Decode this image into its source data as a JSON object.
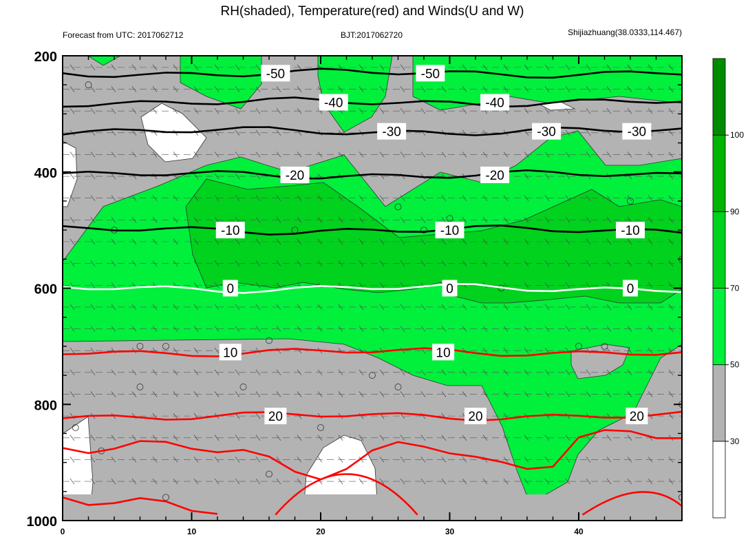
{
  "chart_data": {
    "type": "contour",
    "title": "RH(shaded), Temperature(red) and Winds(U and W)",
    "subtitle_left": "Forecast from UTC: 2017062712",
    "subtitle_center": "BJT:2017062720",
    "subtitle_right": "Shijiazhuang(38.0333,114.467)",
    "x": {
      "range": [
        0,
        48
      ],
      "ticks": [
        0,
        10,
        20,
        30,
        40
      ],
      "tick_labels": [
        "0",
        "10",
        "20",
        "30",
        "40"
      ]
    },
    "y": {
      "range": [
        200,
        1000
      ],
      "reversed": true,
      "ticks": [
        200,
        400,
        600,
        800,
        1000
      ],
      "tick_labels": [
        "200",
        "400",
        "600",
        "800",
        "1000"
      ]
    },
    "colorbar": {
      "levels": [
        30,
        50,
        70,
        90,
        100
      ],
      "labels": [
        "30",
        "50",
        "70",
        "90",
        "100"
      ],
      "colors": [
        "#ffffff",
        "#b3b3b3",
        "#00f03c",
        "#00d21e",
        "#00b400",
        "#008c00"
      ]
    },
    "temperature_contours": [
      {
        "value": -50,
        "label": "-50",
        "level": 230,
        "color": "#000000",
        "label_x": [
          16.5,
          28.5
        ]
      },
      {
        "value": -40,
        "label": "-40",
        "level": 280,
        "color": "#000000",
        "label_x": [
          21,
          33.5
        ]
      },
      {
        "value": -30,
        "label": "-30",
        "level": 330,
        "color": "#000000",
        "label_x": [
          25.5,
          37.5,
          44.5
        ]
      },
      {
        "value": -20,
        "label": "-20",
        "level": 405,
        "color": "#000000",
        "label_x": [
          18,
          33.5
        ]
      },
      {
        "value": -10,
        "label": "-10",
        "level": 500,
        "color": "#000000",
        "label_x": [
          13,
          30,
          44
        ]
      },
      {
        "value": 0,
        "label": "0",
        "level": 600,
        "color": "#ffffff",
        "label_x": [
          13,
          30,
          44
        ]
      },
      {
        "value": 10,
        "label": "10",
        "level": 710,
        "color": "#ff0000",
        "label_x": [
          13,
          29.5
        ]
      },
      {
        "value": 20,
        "label": "20",
        "level": 820,
        "color": "#ff0000",
        "label_x": [
          16.5,
          32,
          44.5
        ]
      }
    ]
  }
}
